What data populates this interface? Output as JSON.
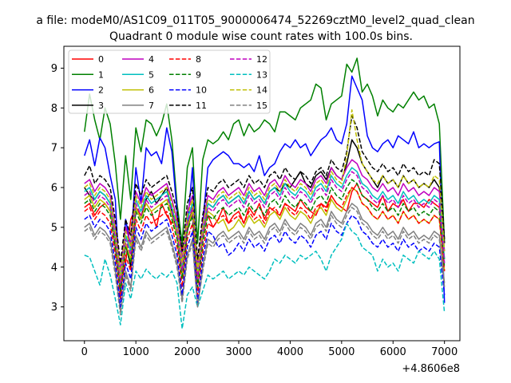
{
  "chart_data": {
    "type": "line",
    "suptitle": "a file: modeM0/AS1C09_011T05_9000006474_52269cztM0_level2_quad_clean",
    "title": "Quadrant 0 module wise count rates with 100.0s bins.",
    "xlabel": "",
    "ylabel": "",
    "x_offset_label": "+4.8606e8",
    "xlim": [
      -400,
      7300
    ],
    "ylim": [
      2.15,
      9.55
    ],
    "x_ticks": [
      0,
      1000,
      2000,
      3000,
      4000,
      5000,
      6000,
      7000
    ],
    "x_tick_labels": [
      "0",
      "1000",
      "2000",
      "3000",
      "4000",
      "5000",
      "6000",
      "7000"
    ],
    "y_ticks": [
      3,
      4,
      5,
      6,
      7,
      8,
      9
    ],
    "y_tick_labels": [
      "3",
      "4",
      "5",
      "6",
      "7",
      "8",
      "9"
    ],
    "legend_position": "top-left",
    "x_start": 0,
    "x_step": 100,
    "series": [
      {
        "name": "0",
        "color": "#ff0000",
        "dash": "solid",
        "values": [
          5.5,
          5.6,
          5.3,
          5.5,
          5.6,
          5.4,
          4.6,
          3.6,
          4.1,
          5.2,
          5.5,
          5.3,
          5.6,
          5.4,
          5.0,
          5.6,
          5.3,
          5.1,
          5.2,
          4.4,
          5.1,
          5.3,
          3.9,
          4.9,
          5.3,
          5.0,
          5.2,
          5.5,
          5.1,
          5.3,
          5.4,
          5.1,
          5.5,
          5.3,
          5.6,
          5.2,
          5.5,
          5.4,
          5.3,
          5.6,
          5.5,
          5.4,
          5.7,
          5.5,
          5.4,
          5.3,
          5.6,
          5.5,
          5.8,
          5.6,
          5.5,
          5.4,
          5.9,
          6.1,
          5.8,
          5.7,
          5.6,
          5.5,
          5.8,
          5.4,
          5.6,
          5.5,
          5.7,
          5.4,
          5.6,
          5.6,
          5.5,
          5.7,
          5.6,
          5.5,
          4.2
        ]
      },
      {
        "name": "1",
        "color": "#008000",
        "dash": "solid",
        "values": [
          7.4,
          8.35,
          7.7,
          7.2,
          8.0,
          7.6,
          6.6,
          5.2,
          6.8,
          5.7,
          7.5,
          6.9,
          7.7,
          7.6,
          7.3,
          7.6,
          8.1,
          7.2,
          5.6,
          4.6,
          6.5,
          7.0,
          4.6,
          6.7,
          7.2,
          7.1,
          7.2,
          7.4,
          7.2,
          7.6,
          7.7,
          7.3,
          7.6,
          7.4,
          7.5,
          7.7,
          7.6,
          7.4,
          7.9,
          7.9,
          7.8,
          7.7,
          8.0,
          8.1,
          8.2,
          8.6,
          8.5,
          7.7,
          8.1,
          8.2,
          8.3,
          9.1,
          8.9,
          9.25,
          8.4,
          8.6,
          8.3,
          7.8,
          8.2,
          8.0,
          7.9,
          8.1,
          8.0,
          8.2,
          8.4,
          8.2,
          8.3,
          8.0,
          8.1,
          7.6,
          4.6
        ]
      },
      {
        "name": "2",
        "color": "#0000ff",
        "dash": "solid",
        "values": [
          6.8,
          7.2,
          6.55,
          7.25,
          7.0,
          6.3,
          5.7,
          3.2,
          5.2,
          4.5,
          6.5,
          5.6,
          7.0,
          6.8,
          6.9,
          6.6,
          7.5,
          6.9,
          5.4,
          4.2,
          5.0,
          6.5,
          3.6,
          5.1,
          6.5,
          6.7,
          6.8,
          6.9,
          6.8,
          6.6,
          6.6,
          6.5,
          6.6,
          6.4,
          6.8,
          6.3,
          6.5,
          6.6,
          6.9,
          7.1,
          7.0,
          7.2,
          7.0,
          7.1,
          6.8,
          7.0,
          7.2,
          7.3,
          7.5,
          7.2,
          7.1,
          7.6,
          8.8,
          8.5,
          8.2,
          7.3,
          7.0,
          6.9,
          7.1,
          7.2,
          7.0,
          7.3,
          7.2,
          7.1,
          7.4,
          7.0,
          7.1,
          7.0,
          7.1,
          7.15,
          3.1
        ]
      },
      {
        "name": "3",
        "color": "#000000",
        "dash": "solid",
        "values": [
          6.0,
          5.8,
          5.7,
          5.9,
          5.8,
          5.6,
          4.5,
          3.5,
          4.6,
          4.0,
          5.5,
          5.2,
          5.7,
          5.9,
          5.6,
          5.8,
          6.0,
          5.4,
          4.8,
          3.8,
          4.9,
          5.5,
          3.8,
          4.8,
          5.6,
          5.5,
          5.7,
          5.8,
          5.6,
          5.7,
          5.8,
          5.6,
          5.9,
          5.7,
          5.8,
          5.6,
          5.9,
          6.0,
          5.9,
          6.1,
          6.0,
          6.2,
          6.4,
          6.1,
          6.0,
          6.3,
          6.4,
          6.2,
          6.5,
          6.3,
          6.2,
          6.6,
          7.2,
          7.0,
          6.6,
          6.4,
          6.2,
          6.0,
          6.3,
          6.1,
          6.2,
          6.0,
          6.3,
          6.1,
          6.2,
          6.0,
          6.1,
          6.0,
          6.2,
          6.0,
          4.6
        ]
      },
      {
        "name": "4",
        "color": "#bf00bf",
        "dash": "solid",
        "values": [
          6.1,
          6.2,
          5.9,
          6.1,
          6.0,
          5.8,
          5.0,
          3.9,
          5.0,
          4.6,
          5.9,
          5.6,
          6.0,
          5.8,
          5.9,
          6.0,
          6.1,
          5.7,
          5.2,
          4.2,
          5.4,
          5.8,
          4.0,
          5.1,
          5.8,
          5.7,
          5.9,
          6.0,
          5.8,
          5.9,
          6.0,
          5.8,
          6.1,
          5.9,
          6.0,
          5.8,
          6.1,
          6.2,
          6.0,
          6.3,
          6.1,
          6.0,
          6.2,
          6.1,
          5.9,
          6.2,
          6.3,
          6.1,
          6.5,
          6.3,
          6.2,
          6.5,
          6.7,
          6.6,
          6.3,
          6.2,
          6.0,
          5.9,
          6.1,
          5.9,
          6.0,
          5.8,
          6.1,
          5.9,
          6.0,
          5.8,
          5.9,
          5.8,
          6.0,
          5.9,
          4.4
        ]
      },
      {
        "name": "5",
        "color": "#00bfbf",
        "dash": "solid",
        "values": [
          5.9,
          6.0,
          5.7,
          5.9,
          5.8,
          5.6,
          4.8,
          3.7,
          4.8,
          4.4,
          5.7,
          5.4,
          5.8,
          5.6,
          5.7,
          5.8,
          5.9,
          5.5,
          5.0,
          4.0,
          5.2,
          5.6,
          3.8,
          4.9,
          5.6,
          5.5,
          5.7,
          5.8,
          5.6,
          5.7,
          5.8,
          5.6,
          5.9,
          5.7,
          5.8,
          5.6,
          5.9,
          6.0,
          5.8,
          6.1,
          5.9,
          5.8,
          6.0,
          5.9,
          5.7,
          6.0,
          6.1,
          5.9,
          6.3,
          6.1,
          6.0,
          6.3,
          6.5,
          6.4,
          6.1,
          6.0,
          5.8,
          5.7,
          5.9,
          5.7,
          5.8,
          5.6,
          5.9,
          5.7,
          5.8,
          5.6,
          5.7,
          5.6,
          5.8,
          5.7,
          4.2
        ]
      },
      {
        "name": "6",
        "color": "#bfbf00",
        "dash": "solid",
        "values": [
          5.7,
          5.8,
          5.5,
          5.7,
          5.6,
          5.4,
          4.6,
          3.5,
          4.6,
          4.2,
          5.5,
          5.2,
          5.6,
          5.4,
          5.5,
          5.6,
          5.7,
          5.3,
          4.8,
          3.8,
          5.0,
          5.4,
          3.6,
          4.7,
          5.4,
          5.3,
          5.1,
          5.2,
          4.9,
          5.0,
          5.2,
          5.0,
          5.3,
          5.1,
          5.2,
          5.0,
          5.3,
          5.4,
          5.2,
          5.5,
          5.3,
          5.2,
          5.4,
          5.3,
          5.1,
          5.4,
          5.5,
          5.3,
          5.7,
          5.5,
          5.4,
          5.7,
          6.0,
          5.9,
          5.6,
          5.5,
          5.3,
          5.2,
          5.4,
          5.2,
          5.3,
          5.1,
          5.4,
          5.2,
          5.3,
          5.1,
          5.2,
          5.1,
          5.3,
          5.2,
          3.9
        ]
      },
      {
        "name": "7",
        "color": "#808080",
        "dash": "solid",
        "values": [
          5.0,
          5.1,
          4.8,
          5.0,
          4.9,
          4.7,
          3.9,
          2.9,
          3.9,
          3.5,
          4.8,
          4.5,
          4.9,
          4.7,
          4.8,
          4.9,
          5.0,
          4.6,
          4.1,
          3.2,
          4.3,
          4.7,
          3.0,
          4.0,
          4.7,
          4.6,
          4.8,
          4.9,
          4.7,
          4.8,
          4.9,
          4.7,
          5.0,
          4.8,
          4.9,
          4.7,
          5.0,
          5.1,
          4.9,
          5.2,
          5.0,
          4.9,
          5.1,
          5.0,
          4.8,
          5.1,
          5.2,
          5.0,
          5.4,
          5.2,
          5.1,
          5.4,
          5.6,
          5.5,
          5.2,
          5.1,
          4.9,
          4.8,
          5.0,
          4.8,
          4.9,
          4.7,
          5.0,
          4.8,
          4.9,
          4.7,
          4.8,
          4.7,
          4.9,
          4.8,
          3.6
        ]
      },
      {
        "name": "8",
        "color": "#ff0000",
        "dash": "dashed",
        "values": [
          5.4,
          5.5,
          5.2,
          5.4,
          5.3,
          5.1,
          4.3,
          3.2,
          4.3,
          3.9,
          5.2,
          4.9,
          5.3,
          5.1,
          5.2,
          5.3,
          5.4,
          5.0,
          4.5,
          3.5,
          4.7,
          5.1,
          3.3,
          4.4,
          5.1,
          5.0,
          5.2,
          5.3,
          5.1,
          5.2,
          5.3,
          5.1,
          5.4,
          5.2,
          5.3,
          5.1,
          5.4,
          5.5,
          5.3,
          5.6,
          5.4,
          5.3,
          5.5,
          5.4,
          5.2,
          5.5,
          5.6,
          5.4,
          5.8,
          5.6,
          5.5,
          5.8,
          6.0,
          5.9,
          5.6,
          5.5,
          5.3,
          5.2,
          5.4,
          5.2,
          5.3,
          5.1,
          5.4,
          5.2,
          5.3,
          5.1,
          5.2,
          5.1,
          5.3,
          5.2,
          3.9
        ]
      },
      {
        "name": "9",
        "color": "#008000",
        "dash": "dashed",
        "values": [
          5.6,
          5.7,
          5.4,
          5.6,
          5.5,
          5.3,
          4.5,
          3.4,
          4.5,
          4.1,
          5.4,
          5.1,
          5.5,
          5.3,
          5.4,
          5.5,
          5.6,
          5.2,
          4.7,
          3.7,
          4.9,
          5.3,
          3.5,
          4.6,
          5.3,
          5.2,
          5.4,
          5.5,
          5.3,
          5.4,
          5.5,
          5.3,
          5.6,
          5.4,
          5.5,
          5.3,
          5.6,
          5.7,
          5.5,
          5.8,
          5.6,
          5.5,
          5.7,
          5.6,
          5.4,
          5.7,
          5.8,
          5.6,
          6.0,
          5.8,
          5.7,
          6.0,
          6.2,
          6.1,
          5.8,
          5.7,
          5.5,
          5.4,
          5.6,
          5.4,
          5.5,
          5.3,
          5.6,
          5.4,
          5.5,
          5.3,
          5.4,
          5.3,
          5.5,
          5.4,
          4.0
        ]
      },
      {
        "name": "10",
        "color": "#0000ff",
        "dash": "dashed",
        "values": [
          5.2,
          5.3,
          5.0,
          5.2,
          5.1,
          4.9,
          4.1,
          3.0,
          4.1,
          3.7,
          5.0,
          4.7,
          5.1,
          4.9,
          5.0,
          5.1,
          5.2,
          4.8,
          4.3,
          3.3,
          4.5,
          4.9,
          3.1,
          4.2,
          4.9,
          4.8,
          4.5,
          4.6,
          4.3,
          4.4,
          4.6,
          4.4,
          4.7,
          4.5,
          4.6,
          4.4,
          4.7,
          4.8,
          4.6,
          4.9,
          4.7,
          4.6,
          4.8,
          4.7,
          4.5,
          4.8,
          4.9,
          4.7,
          5.1,
          4.9,
          4.8,
          5.1,
          5.3,
          5.2,
          4.9,
          4.8,
          4.6,
          4.5,
          4.7,
          4.5,
          4.6,
          4.4,
          4.7,
          4.5,
          4.6,
          4.4,
          4.5,
          4.4,
          4.6,
          4.5,
          3.3
        ]
      },
      {
        "name": "11",
        "color": "#000000",
        "dash": "dashed",
        "values": [
          6.3,
          6.55,
          6.1,
          6.3,
          6.2,
          6.0,
          5.2,
          4.1,
          5.2,
          4.8,
          6.1,
          5.8,
          6.2,
          6.0,
          6.1,
          6.2,
          6.3,
          5.9,
          5.4,
          4.4,
          5.6,
          6.0,
          4.2,
          5.3,
          6.0,
          5.9,
          6.1,
          6.2,
          6.0,
          6.1,
          6.2,
          6.0,
          6.3,
          6.1,
          6.2,
          6.0,
          6.3,
          6.4,
          6.2,
          6.5,
          6.3,
          6.2,
          6.4,
          6.3,
          6.1,
          6.4,
          6.5,
          6.3,
          6.7,
          6.5,
          6.4,
          6.9,
          7.8,
          7.5,
          6.9,
          6.7,
          6.5,
          6.4,
          6.6,
          6.4,
          6.5,
          6.3,
          6.6,
          6.4,
          6.5,
          6.3,
          6.4,
          6.3,
          6.7,
          6.6,
          4.7
        ]
      },
      {
        "name": "12",
        "color": "#bf00bf",
        "dash": "dashed",
        "values": [
          5.8,
          5.9,
          5.6,
          5.8,
          5.7,
          5.5,
          4.7,
          3.6,
          4.7,
          4.3,
          5.6,
          5.3,
          5.7,
          5.5,
          5.6,
          5.7,
          5.8,
          5.4,
          4.9,
          3.9,
          5.1,
          5.5,
          3.7,
          4.8,
          5.5,
          5.4,
          5.6,
          5.7,
          5.5,
          5.6,
          5.7,
          5.5,
          5.8,
          5.6,
          5.7,
          5.5,
          5.8,
          5.9,
          5.7,
          6.0,
          5.8,
          5.7,
          5.9,
          5.8,
          5.6,
          5.9,
          6.0,
          5.8,
          6.2,
          6.0,
          5.9,
          6.2,
          6.4,
          6.3,
          6.0,
          5.9,
          5.7,
          5.6,
          5.8,
          5.6,
          5.7,
          5.5,
          5.8,
          5.6,
          5.7,
          5.5,
          5.6,
          5.5,
          5.7,
          5.6,
          4.1
        ]
      },
      {
        "name": "13",
        "color": "#00bfbf",
        "dash": "dashed",
        "values": [
          4.3,
          4.25,
          3.9,
          3.55,
          4.2,
          3.8,
          3.2,
          2.55,
          3.6,
          3.2,
          3.9,
          3.7,
          3.95,
          3.8,
          3.7,
          3.85,
          3.75,
          3.9,
          3.6,
          2.45,
          3.3,
          3.5,
          3.0,
          3.4,
          3.8,
          3.7,
          3.8,
          3.9,
          3.7,
          3.8,
          3.9,
          3.8,
          4.0,
          3.9,
          3.8,
          3.7,
          3.9,
          4.2,
          4.1,
          4.3,
          4.2,
          4.1,
          4.3,
          4.2,
          4.3,
          4.4,
          4.2,
          3.9,
          4.3,
          4.5,
          4.7,
          5.1,
          4.9,
          4.8,
          4.5,
          4.4,
          4.3,
          3.9,
          4.2,
          4.0,
          4.1,
          3.9,
          4.3,
          4.2,
          4.1,
          4.4,
          4.3,
          4.2,
          4.4,
          4.2,
          2.85
        ]
      },
      {
        "name": "14",
        "color": "#bfbf00",
        "dash": "dashed",
        "values": [
          6.0,
          6.1,
          5.8,
          6.0,
          5.9,
          5.7,
          4.9,
          3.8,
          4.9,
          4.5,
          5.8,
          5.5,
          5.9,
          5.7,
          5.8,
          5.9,
          6.0,
          5.6,
          5.1,
          4.1,
          5.3,
          5.7,
          3.9,
          5.0,
          5.7,
          5.6,
          5.8,
          5.9,
          5.7,
          5.8,
          5.9,
          5.7,
          6.0,
          5.8,
          5.9,
          5.7,
          6.0,
          6.1,
          5.9,
          6.2,
          6.0,
          5.9,
          6.1,
          6.0,
          5.8,
          6.1,
          6.2,
          6.0,
          6.4,
          6.2,
          6.1,
          6.8,
          7.95,
          7.2,
          6.6,
          6.4,
          6.2,
          6.1,
          6.3,
          6.1,
          6.2,
          6.0,
          6.3,
          6.1,
          6.2,
          6.0,
          6.1,
          6.0,
          6.3,
          6.2,
          4.4
        ]
      },
      {
        "name": "15",
        "color": "#808080",
        "dash": "dashed",
        "values": [
          4.9,
          5.0,
          4.7,
          4.9,
          4.8,
          4.6,
          3.8,
          2.8,
          3.8,
          3.4,
          4.7,
          4.4,
          4.8,
          4.6,
          4.7,
          4.8,
          4.9,
          4.5,
          4.0,
          3.1,
          4.2,
          4.6,
          3.0,
          3.9,
          4.6,
          4.5,
          4.7,
          4.8,
          4.6,
          4.7,
          4.8,
          4.6,
          4.9,
          4.7,
          4.8,
          4.6,
          4.9,
          5.0,
          4.8,
          5.1,
          4.9,
          4.8,
          5.0,
          4.9,
          4.7,
          5.0,
          5.1,
          4.9,
          5.3,
          5.1,
          5.0,
          5.3,
          5.5,
          5.4,
          5.1,
          5.0,
          4.8,
          4.7,
          4.9,
          4.7,
          4.8,
          4.6,
          4.9,
          4.7,
          4.8,
          4.6,
          4.7,
          4.6,
          4.8,
          4.7,
          3.5
        ]
      }
    ]
  }
}
